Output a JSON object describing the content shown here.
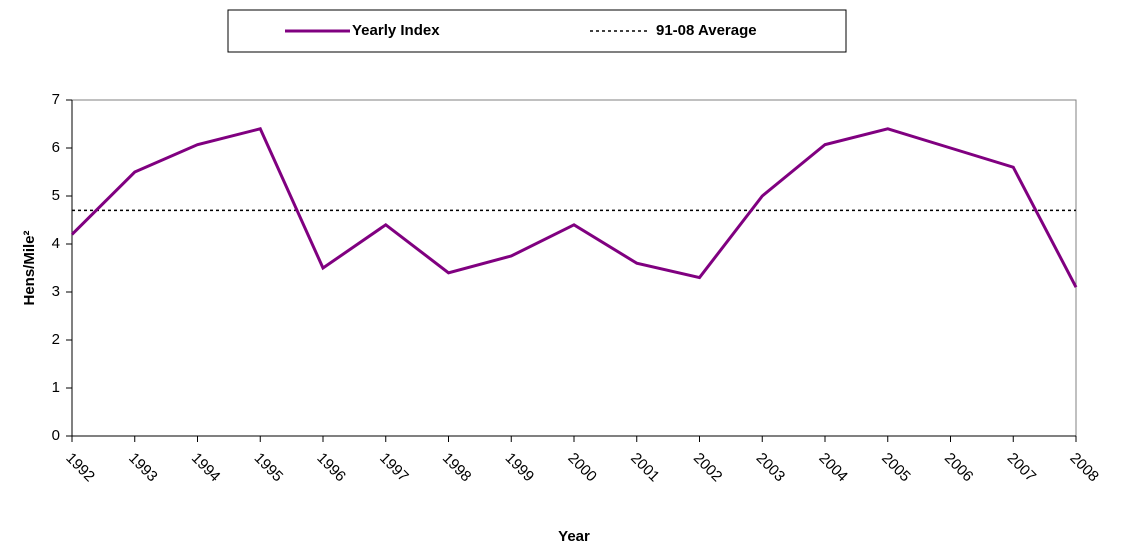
{
  "chart_data": {
    "type": "line",
    "xlabel": "Year",
    "ylabel": "Hens/Mile²",
    "categories": [
      "1992",
      "1993",
      "1994",
      "1995",
      "1996",
      "1997",
      "1998",
      "1999",
      "2000",
      "2001",
      "2002",
      "2003",
      "2004",
      "2005",
      "2006",
      "2007",
      "2008"
    ],
    "series": [
      {
        "name": "Yearly Index",
        "color": "#800080",
        "values": [
          4.2,
          5.5,
          6.07,
          6.4,
          3.5,
          4.4,
          3.4,
          3.75,
          4.4,
          3.6,
          3.3,
          5.0,
          6.07,
          6.4,
          6.0,
          5.6,
          3.1
        ]
      }
    ],
    "reference_line": {
      "name": "91-08 Average",
      "value": 4.7,
      "color": "#000000",
      "style": "dashed"
    },
    "ylim": [
      0,
      7
    ],
    "yticks": [
      0,
      1,
      2,
      3,
      4,
      5,
      6,
      7
    ],
    "legend": "top"
  }
}
